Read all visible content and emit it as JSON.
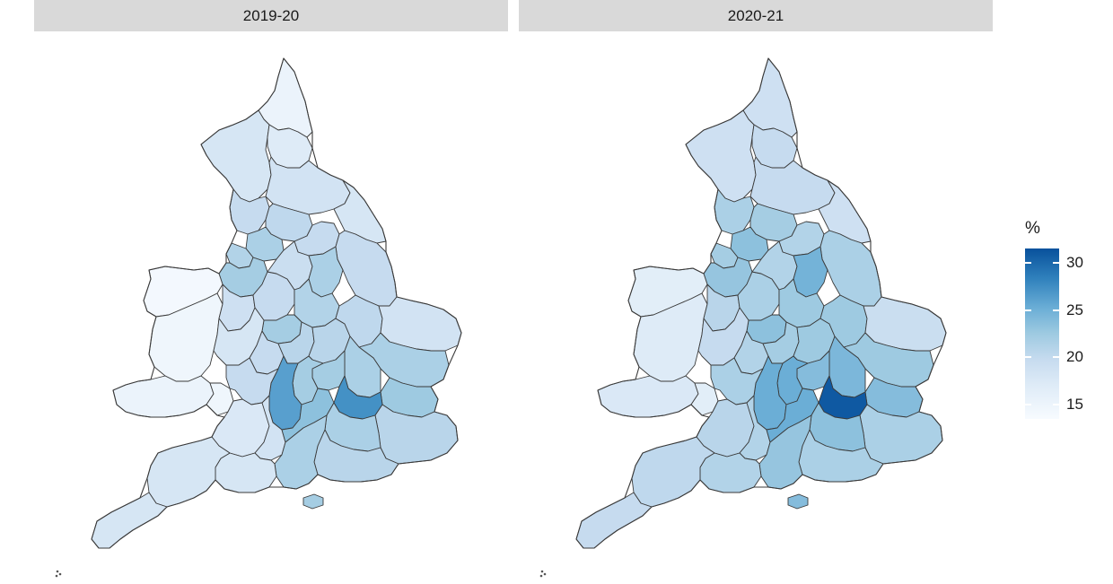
{
  "facets": [
    {
      "label": "2019-20"
    },
    {
      "label": "2020-21"
    }
  ],
  "legend": {
    "title": "%",
    "min": 13.5,
    "max": 31.5,
    "ticks": [
      {
        "value": 15,
        "label": "15"
      },
      {
        "value": 20,
        "label": "20"
      },
      {
        "value": 25,
        "label": "25"
      },
      {
        "value": 30,
        "label": "30"
      }
    ],
    "colors": [
      "#f7fbff",
      "#deebf7",
      "#c6dbef",
      "#9ecae1",
      "#6baed6",
      "#3182bd",
      "#08519c"
    ]
  },
  "map_data": {
    "type": "choropleth",
    "geography": "England and Wales areas",
    "regions": [
      {
        "id": "northumberland",
        "values": [
          15.0,
          18.5
        ]
      },
      {
        "id": "cumbria",
        "values": [
          17.5,
          18.5
        ]
      },
      {
        "id": "tyne-wear",
        "values": [
          16.5,
          19.5
        ]
      },
      {
        "id": "north-yorkshire",
        "values": [
          18.0,
          19.5
        ]
      },
      {
        "id": "east-riding",
        "values": [
          17.5,
          18.5
        ]
      },
      {
        "id": "lancashire",
        "values": [
          19.5,
          21.5
        ]
      },
      {
        "id": "west-yorkshire",
        "values": [
          20.0,
          22.0
        ]
      },
      {
        "id": "south-yorkshire",
        "values": [
          19.5,
          21.0
        ]
      },
      {
        "id": "lincolnshire",
        "values": [
          19.5,
          21.5
        ]
      },
      {
        "id": "greater-manchester",
        "values": [
          21.5,
          23.5
        ]
      },
      {
        "id": "merseyside",
        "values": [
          21.0,
          22.0
        ]
      },
      {
        "id": "cheshire",
        "values": [
          22.0,
          23.0
        ]
      },
      {
        "id": "north-wales",
        "values": [
          14.0,
          16.0
        ]
      },
      {
        "id": "mid-wales",
        "values": [
          14.5,
          16.5
        ]
      },
      {
        "id": "south-wales",
        "values": [
          15.0,
          17.0
        ]
      },
      {
        "id": "cardiff",
        "values": [
          14.5,
          16.0
        ]
      },
      {
        "id": "shropshire",
        "values": [
          18.5,
          20.5
        ]
      },
      {
        "id": "staffordshire",
        "values": [
          19.5,
          21.5
        ]
      },
      {
        "id": "derbyshire",
        "values": [
          19.0,
          21.0
        ]
      },
      {
        "id": "nottinghamshire",
        "values": [
          21.5,
          25.0
        ]
      },
      {
        "id": "leicestershire",
        "values": [
          21.0,
          22.5
        ]
      },
      {
        "id": "west-midlands",
        "values": [
          22.0,
          23.5
        ]
      },
      {
        "id": "herefordshire",
        "values": [
          17.5,
          19.5
        ]
      },
      {
        "id": "worcestershire",
        "values": [
          19.5,
          21.0
        ]
      },
      {
        "id": "warwickshire",
        "values": [
          20.5,
          22.0
        ]
      },
      {
        "id": "northamptonshire",
        "values": [
          20.5,
          22.5
        ]
      },
      {
        "id": "cambridgeshire",
        "values": [
          20.0,
          22.5
        ]
      },
      {
        "id": "norfolk",
        "values": [
          18.0,
          19.0
        ]
      },
      {
        "id": "suffolk",
        "values": [
          21.5,
          22.5
        ]
      },
      {
        "id": "essex",
        "values": [
          22.5,
          24.0
        ]
      },
      {
        "id": "hertfordshire",
        "values": [
          21.5,
          24.5
        ]
      },
      {
        "id": "bedfordshire",
        "values": [
          22.0,
          24.0
        ]
      },
      {
        "id": "buckinghamshire",
        "values": [
          22.0,
          25.5
        ]
      },
      {
        "id": "oxfordshire",
        "values": [
          26.5,
          25.5
        ]
      },
      {
        "id": "gloucestershire",
        "values": [
          19.5,
          21.5
        ]
      },
      {
        "id": "bristol-somerset",
        "values": [
          17.0,
          20.5
        ]
      },
      {
        "id": "wiltshire",
        "values": [
          18.0,
          21.0
        ]
      },
      {
        "id": "berkshire",
        "values": [
          23.5,
          25.5
        ]
      },
      {
        "id": "london",
        "values": [
          27.5,
          31.0
        ]
      },
      {
        "id": "kent",
        "values": [
          20.5,
          21.5
        ]
      },
      {
        "id": "surrey",
        "values": [
          21.5,
          23.5
        ]
      },
      {
        "id": "sussex",
        "values": [
          20.5,
          21.5
        ]
      },
      {
        "id": "hampshire",
        "values": [
          21.5,
          23.0
        ]
      },
      {
        "id": "dorset",
        "values": [
          17.5,
          21.0
        ]
      },
      {
        "id": "devon",
        "values": [
          17.5,
          20.0
        ]
      },
      {
        "id": "cornwall",
        "values": [
          17.5,
          19.5
        ]
      },
      {
        "id": "isle-of-wight",
        "values": [
          22.0,
          24.0
        ]
      }
    ]
  }
}
